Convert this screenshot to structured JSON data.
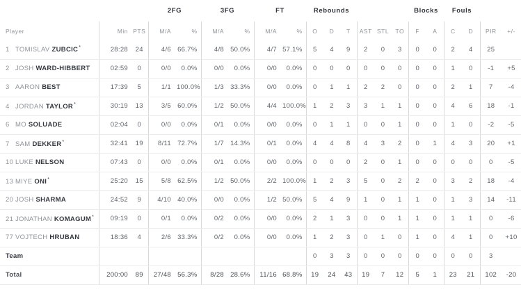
{
  "colors": {
    "background": "#ffffff",
    "text_dark": "#2e3239",
    "text_gray": "#8f9398",
    "text_value": "#5f646a",
    "border_vertical": "#d9d9d9",
    "border_horizontal": "#ececec"
  },
  "table": {
    "groups": [
      {
        "label": "",
        "span": 3
      },
      {
        "label": "2FG",
        "span": 2
      },
      {
        "label": "3FG",
        "span": 2
      },
      {
        "label": "FT",
        "span": 2
      },
      {
        "label": "Rebounds",
        "span": 3
      },
      {
        "label": "",
        "span": 3
      },
      {
        "label": "Blocks",
        "span": 2
      },
      {
        "label": "Fouls",
        "span": 2
      },
      {
        "label": "",
        "span": 2
      }
    ],
    "sub_headers": [
      "Player",
      "Min",
      "PTS",
      "M/A",
      "%",
      "M/A",
      "%",
      "M/A",
      "%",
      "O",
      "D",
      "T",
      "AST",
      "STL",
      "TO",
      "F",
      "A",
      "C",
      "D",
      "PIR",
      "+/-"
    ],
    "players": [
      {
        "no": "1",
        "first": "TOMISLAV",
        "last": "ZUBCIC",
        "starter": "*",
        "cells": [
          "28:28",
          "24",
          "4/6",
          "66.7%",
          "4/8",
          "50.0%",
          "4/7",
          "57.1%",
          "5",
          "4",
          "9",
          "2",
          "0",
          "3",
          "0",
          "0",
          "2",
          "4",
          "25",
          ""
        ]
      },
      {
        "no": "2",
        "first": "JOSH",
        "last": "WARD-HIBBERT",
        "starter": "",
        "cells": [
          "02:59",
          "0",
          "0/0",
          "0.0%",
          "0/0",
          "0.0%",
          "0/0",
          "0.0%",
          "0",
          "0",
          "0",
          "0",
          "0",
          "0",
          "0",
          "0",
          "1",
          "0",
          "-1",
          "+5"
        ]
      },
      {
        "no": "3",
        "first": "AARON",
        "last": "BEST",
        "starter": "",
        "cells": [
          "17:39",
          "5",
          "1/1",
          "100.0%",
          "1/3",
          "33.3%",
          "0/0",
          "0.0%",
          "0",
          "1",
          "1",
          "2",
          "2",
          "0",
          "0",
          "0",
          "2",
          "1",
          "7",
          "-4"
        ]
      },
      {
        "no": "4",
        "first": "JORDAN",
        "last": "TAYLOR",
        "starter": "*",
        "cells": [
          "30:19",
          "13",
          "3/5",
          "60.0%",
          "1/2",
          "50.0%",
          "4/4",
          "100.0%",
          "1",
          "2",
          "3",
          "3",
          "1",
          "1",
          "0",
          "0",
          "4",
          "6",
          "18",
          "-1"
        ]
      },
      {
        "no": "6",
        "first": "MO",
        "last": "SOLUADE",
        "starter": "",
        "cells": [
          "02:04",
          "0",
          "0/0",
          "0.0%",
          "0/1",
          "0.0%",
          "0/0",
          "0.0%",
          "0",
          "1",
          "1",
          "0",
          "0",
          "1",
          "0",
          "0",
          "1",
          "0",
          "-2",
          "-5"
        ]
      },
      {
        "no": "7",
        "first": "SAM",
        "last": "DEKKER",
        "starter": "*",
        "cells": [
          "32:41",
          "19",
          "8/11",
          "72.7%",
          "1/7",
          "14.3%",
          "0/1",
          "0.0%",
          "4",
          "4",
          "8",
          "4",
          "3",
          "2",
          "0",
          "1",
          "4",
          "3",
          "20",
          "+1"
        ]
      },
      {
        "no": "10",
        "first": "LUKE",
        "last": "NELSON",
        "starter": "",
        "cells": [
          "07:43",
          "0",
          "0/0",
          "0.0%",
          "0/1",
          "0.0%",
          "0/0",
          "0.0%",
          "0",
          "0",
          "0",
          "2",
          "0",
          "1",
          "0",
          "0",
          "0",
          "0",
          "0",
          "-5"
        ]
      },
      {
        "no": "13",
        "first": "MIYE",
        "last": "ONI",
        "starter": "*",
        "cells": [
          "25:20",
          "15",
          "5/8",
          "62.5%",
          "1/2",
          "50.0%",
          "2/2",
          "100.0%",
          "1",
          "2",
          "3",
          "5",
          "0",
          "2",
          "2",
          "0",
          "3",
          "2",
          "18",
          "-4"
        ]
      },
      {
        "no": "20",
        "first": "JOSH",
        "last": "SHARMA",
        "starter": "",
        "cells": [
          "24:52",
          "9",
          "4/10",
          "40.0%",
          "0/0",
          "0.0%",
          "1/2",
          "50.0%",
          "5",
          "4",
          "9",
          "1",
          "0",
          "1",
          "1",
          "0",
          "1",
          "3",
          "14",
          "-11"
        ]
      },
      {
        "no": "21",
        "first": "JONATHAN",
        "last": "KOMAGUM",
        "starter": "*",
        "cells": [
          "09:19",
          "0",
          "0/1",
          "0.0%",
          "0/2",
          "0.0%",
          "0/0",
          "0.0%",
          "2",
          "1",
          "3",
          "0",
          "0",
          "1",
          "1",
          "0",
          "1",
          "1",
          "0",
          "-6"
        ]
      },
      {
        "no": "77",
        "first": "VOJTECH",
        "last": "HRUBAN",
        "starter": "",
        "cells": [
          "18:36",
          "4",
          "2/6",
          "33.3%",
          "0/2",
          "0.0%",
          "0/0",
          "0.0%",
          "1",
          "2",
          "3",
          "0",
          "1",
          "0",
          "1",
          "0",
          "4",
          "1",
          "0",
          "+10"
        ]
      }
    ],
    "team_row": {
      "label": "Team",
      "cells": [
        "",
        "",
        "",
        "",
        "",
        "",
        "",
        "",
        "0",
        "3",
        "3",
        "0",
        "0",
        "0",
        "0",
        "0",
        "0",
        "0",
        "3",
        ""
      ]
    },
    "total_row": {
      "label": "Total",
      "cells": [
        "200:00",
        "89",
        "27/48",
        "56.3%",
        "8/28",
        "28.6%",
        "11/16",
        "68.8%",
        "19",
        "24",
        "43",
        "19",
        "7",
        "12",
        "5",
        "1",
        "23",
        "21",
        "102",
        "-20"
      ]
    }
  }
}
